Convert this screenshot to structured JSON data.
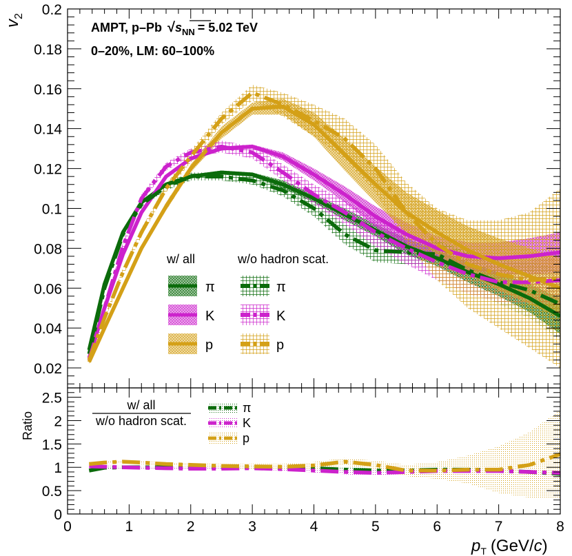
{
  "header": {
    "line1_left": "AMPT, p–Pb",
    "line1_sqrt": "√",
    "line1_s": "s",
    "line1_sub": "NN",
    "line1_right": "= 5.02 TeV",
    "line2": "0–20%, LM: 60–100%"
  },
  "axes": {
    "x_label_p": "p",
    "x_label_sub": "T",
    "x_label_unit_open": "(GeV/",
    "x_label_unit_c": "c",
    "x_label_unit_close": ")",
    "y_top_label_v": "v",
    "y_top_label_sub": "2",
    "y_bottom_label": "Ratio"
  },
  "legend": {
    "col_all": "w/ all",
    "col_wo": "w/o hadron scat.",
    "species": [
      "π",
      "K",
      "p"
    ],
    "ratio_numerator": "w/ all",
    "ratio_denominator": "w/o hadron scat."
  },
  "colors": {
    "pion": "#0b6b0b",
    "kaon": "#cc22cc",
    "proton": "#d4a017"
  },
  "chart_data": [
    {
      "type": "line",
      "title": "",
      "xlabel": "pT (GeV/c)",
      "ylabel": "v2",
      "xlim": [
        0,
        8
      ],
      "ylim": [
        0.01,
        0.2
      ],
      "y_ticks": [
        0.02,
        0.04,
        0.06,
        0.08,
        0.1,
        0.12,
        0.14,
        0.16,
        0.18,
        0.2
      ],
      "y_tick_labels": [
        "0.02",
        "0.04",
        "0.06",
        "0.08",
        "0.1",
        "0.12",
        "0.14",
        "0.16",
        "0.18",
        "0.2"
      ],
      "series": [
        {
          "name": "π w/ all",
          "species": "pion",
          "style": "solid",
          "x": [
            0.35,
            0.6,
            0.9,
            1.2,
            1.6,
            2.0,
            2.5,
            3.0,
            3.5,
            4.0,
            4.5,
            5.0,
            5.5,
            6.0,
            6.5,
            7.0,
            7.5,
            8.0
          ],
          "y": [
            0.029,
            0.062,
            0.088,
            0.103,
            0.112,
            0.116,
            0.118,
            0.117,
            0.112,
            0.105,
            0.097,
            0.089,
            0.081,
            0.075,
            0.068,
            0.062,
            0.055,
            0.046
          ],
          "err": [
            0.001,
            0.001,
            0.001,
            0.001,
            0.001,
            0.001,
            0.001,
            0.001,
            0.002,
            0.002,
            0.003,
            0.003,
            0.004,
            0.004,
            0.005,
            0.006,
            0.007,
            0.009
          ]
        },
        {
          "name": "K w/ all",
          "species": "kaon",
          "style": "solid",
          "x": [
            0.35,
            0.6,
            0.9,
            1.2,
            1.6,
            2.0,
            2.5,
            3.0,
            3.5,
            4.0,
            4.5,
            5.0,
            5.5,
            6.0,
            6.5,
            7.0,
            7.5,
            8.0
          ],
          "y": [
            0.025,
            0.05,
            0.077,
            0.098,
            0.116,
            0.125,
            0.13,
            0.131,
            0.126,
            0.117,
            0.107,
            0.096,
            0.087,
            0.08,
            0.076,
            0.075,
            0.076,
            0.078
          ],
          "err": [
            0.001,
            0.001,
            0.001,
            0.001,
            0.001,
            0.001,
            0.001,
            0.001,
            0.002,
            0.003,
            0.004,
            0.005,
            0.006,
            0.006,
            0.007,
            0.008,
            0.009,
            0.01
          ]
        },
        {
          "name": "p w/ all",
          "species": "proton",
          "style": "solid",
          "x": [
            0.35,
            0.6,
            0.9,
            1.2,
            1.6,
            2.0,
            2.5,
            3.0,
            3.5,
            4.0,
            4.5,
            5.0,
            5.5,
            6.0,
            6.5,
            7.0,
            7.5,
            8.0
          ],
          "y": [
            0.023,
            0.04,
            0.06,
            0.08,
            0.101,
            0.12,
            0.138,
            0.15,
            0.151,
            0.142,
            0.127,
            0.112,
            0.098,
            0.088,
            0.079,
            0.072,
            0.066,
            0.06
          ],
          "err": [
            0.001,
            0.001,
            0.001,
            0.001,
            0.002,
            0.002,
            0.003,
            0.003,
            0.004,
            0.006,
            0.008,
            0.009,
            0.01,
            0.011,
            0.012,
            0.013,
            0.014,
            0.015
          ]
        },
        {
          "name": "π w/o hadron scat.",
          "species": "pion",
          "style": "dashed",
          "x": [
            0.35,
            0.6,
            0.9,
            1.2,
            1.6,
            2.0,
            2.5,
            3.0,
            3.5,
            4.0,
            4.5,
            5.0,
            5.5,
            6.0,
            6.5,
            7.0,
            7.5,
            8.0
          ],
          "y": [
            0.027,
            0.06,
            0.087,
            0.102,
            0.111,
            0.116,
            0.116,
            0.114,
            0.109,
            0.1,
            0.087,
            0.079,
            0.078,
            0.077,
            0.069,
            0.063,
            0.059,
            0.052
          ],
          "err": [
            0.001,
            0.001,
            0.001,
            0.001,
            0.002,
            0.002,
            0.002,
            0.002,
            0.003,
            0.004,
            0.005,
            0.006,
            0.006,
            0.007,
            0.009,
            0.011,
            0.014,
            0.018
          ]
        },
        {
          "name": "K w/o hadron scat.",
          "species": "kaon",
          "style": "dashed",
          "x": [
            0.35,
            0.6,
            0.9,
            1.2,
            1.6,
            2.0,
            2.5,
            3.0,
            3.5,
            4.0,
            4.5,
            5.0,
            5.5,
            6.0,
            6.5,
            7.0,
            7.5,
            8.0
          ],
          "y": [
            0.024,
            0.05,
            0.081,
            0.105,
            0.121,
            0.128,
            0.131,
            0.128,
            0.118,
            0.107,
            0.098,
            0.088,
            0.08,
            0.073,
            0.067,
            0.063,
            0.063,
            0.064
          ],
          "err": [
            0.001,
            0.001,
            0.002,
            0.002,
            0.002,
            0.002,
            0.003,
            0.003,
            0.004,
            0.005,
            0.006,
            0.007,
            0.008,
            0.009,
            0.01,
            0.01,
            0.011,
            0.012
          ]
        },
        {
          "name": "p w/o hadron scat.",
          "species": "proton",
          "style": "dashed",
          "x": [
            0.35,
            0.6,
            0.9,
            1.2,
            1.6,
            2.0,
            2.5,
            3.0,
            3.5,
            4.0,
            4.5,
            5.0,
            5.5,
            6.0,
            6.5,
            7.0,
            7.5,
            8.0
          ],
          "y": [
            0.024,
            0.045,
            0.068,
            0.088,
            0.11,
            0.126,
            0.145,
            0.158,
            0.152,
            0.144,
            0.135,
            0.12,
            0.098,
            0.082,
            0.072,
            0.067,
            0.064,
            0.065
          ],
          "err": [
            0.001,
            0.001,
            0.002,
            0.002,
            0.002,
            0.003,
            0.003,
            0.004,
            0.006,
            0.008,
            0.01,
            0.012,
            0.015,
            0.018,
            0.022,
            0.027,
            0.034,
            0.045
          ]
        }
      ]
    },
    {
      "type": "line",
      "title": "",
      "xlabel": "pT (GeV/c)",
      "ylabel": "Ratio",
      "xlim": [
        0,
        8
      ],
      "ylim": [
        0,
        2.7
      ],
      "x_ticks": [
        0,
        1,
        2,
        3,
        4,
        5,
        6,
        7,
        8
      ],
      "x_tick_labels": [
        "0",
        "1",
        "2",
        "3",
        "4",
        "5",
        "6",
        "7",
        "8"
      ],
      "y_ticks": [
        0,
        0.5,
        1,
        1.5,
        2,
        2.5
      ],
      "y_tick_labels": [
        "0",
        "0.5",
        "1",
        "1.5",
        "2",
        "2.5"
      ],
      "series": [
        {
          "name": "π",
          "species": "pion",
          "style": "dashed",
          "x": [
            0.35,
            0.6,
            0.9,
            1.2,
            1.6,
            2.0,
            2.5,
            3.0,
            3.5,
            4.0,
            4.5,
            5.0,
            5.5,
            6.0,
            6.5,
            7.0,
            7.5,
            8.0
          ],
          "y": [
            0.93,
            0.99,
            1.0,
            1.0,
            1.0,
            1.0,
            1.0,
            1.0,
            0.99,
            0.98,
            0.95,
            0.93,
            0.93,
            0.95,
            0.95,
            0.93,
            0.9,
            0.86
          ],
          "err": [
            0.02,
            0.02,
            0.02,
            0.02,
            0.02,
            0.02,
            0.02,
            0.03,
            0.03,
            0.04,
            0.05,
            0.06,
            0.07,
            0.08,
            0.1,
            0.14,
            0.2,
            0.26
          ]
        },
        {
          "name": "K",
          "species": "kaon",
          "style": "dashed",
          "x": [
            0.35,
            0.6,
            0.9,
            1.2,
            1.6,
            2.0,
            2.5,
            3.0,
            3.5,
            4.0,
            4.5,
            5.0,
            5.5,
            6.0,
            6.5,
            7.0,
            7.5,
            8.0
          ],
          "y": [
            1.02,
            1.01,
            1.0,
            0.99,
            0.98,
            0.97,
            0.97,
            0.98,
            0.96,
            0.93,
            0.9,
            0.88,
            0.9,
            0.92,
            0.92,
            0.92,
            0.9,
            0.88
          ],
          "err": [
            0.02,
            0.02,
            0.02,
            0.02,
            0.02,
            0.02,
            0.02,
            0.03,
            0.03,
            0.04,
            0.05,
            0.06,
            0.07,
            0.08,
            0.09,
            0.1,
            0.11,
            0.12
          ]
        },
        {
          "name": "p",
          "species": "proton",
          "style": "dashed",
          "x": [
            0.35,
            0.6,
            0.9,
            1.2,
            1.6,
            2.0,
            2.5,
            3.0,
            3.5,
            4.0,
            4.5,
            5.0,
            5.5,
            6.0,
            6.5,
            7.0,
            7.5,
            8.0
          ],
          "y": [
            1.07,
            1.1,
            1.12,
            1.1,
            1.07,
            1.05,
            1.03,
            1.02,
            1.01,
            1.04,
            1.12,
            1.05,
            0.93,
            0.93,
            0.95,
            0.95,
            1.05,
            1.28
          ],
          "err": [
            0.02,
            0.02,
            0.03,
            0.03,
            0.03,
            0.03,
            0.04,
            0.05,
            0.06,
            0.07,
            0.08,
            0.09,
            0.12,
            0.18,
            0.3,
            0.5,
            0.7,
            0.95
          ]
        }
      ]
    }
  ]
}
